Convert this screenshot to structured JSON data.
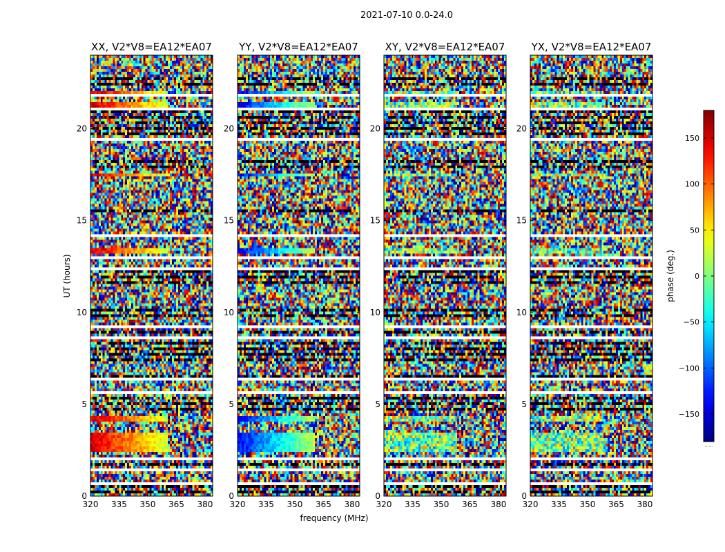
{
  "figure": {
    "suptitle": "2021-07-10 0.0-24.0",
    "xlabel": "frequency (MHz)",
    "ylabel": "UT (hours)"
  },
  "chart_data": {
    "type": "heatmap",
    "xlim": [
      320,
      384
    ],
    "ylim": [
      0,
      24
    ],
    "xticks": [
      320,
      335,
      350,
      365,
      380
    ],
    "yticks": [
      0,
      5,
      10,
      15,
      20
    ],
    "colorscale": "jet",
    "panels": [
      {
        "title": "XX, V2*V8=EA12*EA07",
        "show_yticklabels": true,
        "coherent": "strong-red"
      },
      {
        "title": "YY, V2*V8=EA12*EA07",
        "show_yticklabels": true,
        "coherent": "strong-blue"
      },
      {
        "title": "XY, V2*V8=EA12*EA07",
        "show_yticklabels": true,
        "coherent": "noise"
      },
      {
        "title": "YX, V2*V8=EA12*EA07",
        "show_yticklabels": true,
        "coherent": "noise"
      }
    ],
    "colorbar": {
      "label": "phase (deg.)",
      "range": [
        -180,
        180
      ],
      "ticks": [
        150,
        100,
        50,
        0,
        -50,
        -100,
        -150
      ],
      "tick_labels": [
        "150",
        "100",
        "50",
        "0",
        "−50",
        "−100",
        "−150"
      ],
      "extra_label": "......"
    },
    "flagged_rows_hours": [
      0.72,
      1.35,
      1.42,
      2.0,
      4.35,
      5.65,
      6.35,
      6.4,
      8.65,
      9.2,
      10.5,
      12.35,
      12.9,
      12.95,
      13.5,
      14.2,
      15.3,
      17.25,
      17.85,
      19.4,
      19.45,
      21.1,
      21.8,
      21.85,
      22.35
    ]
  }
}
